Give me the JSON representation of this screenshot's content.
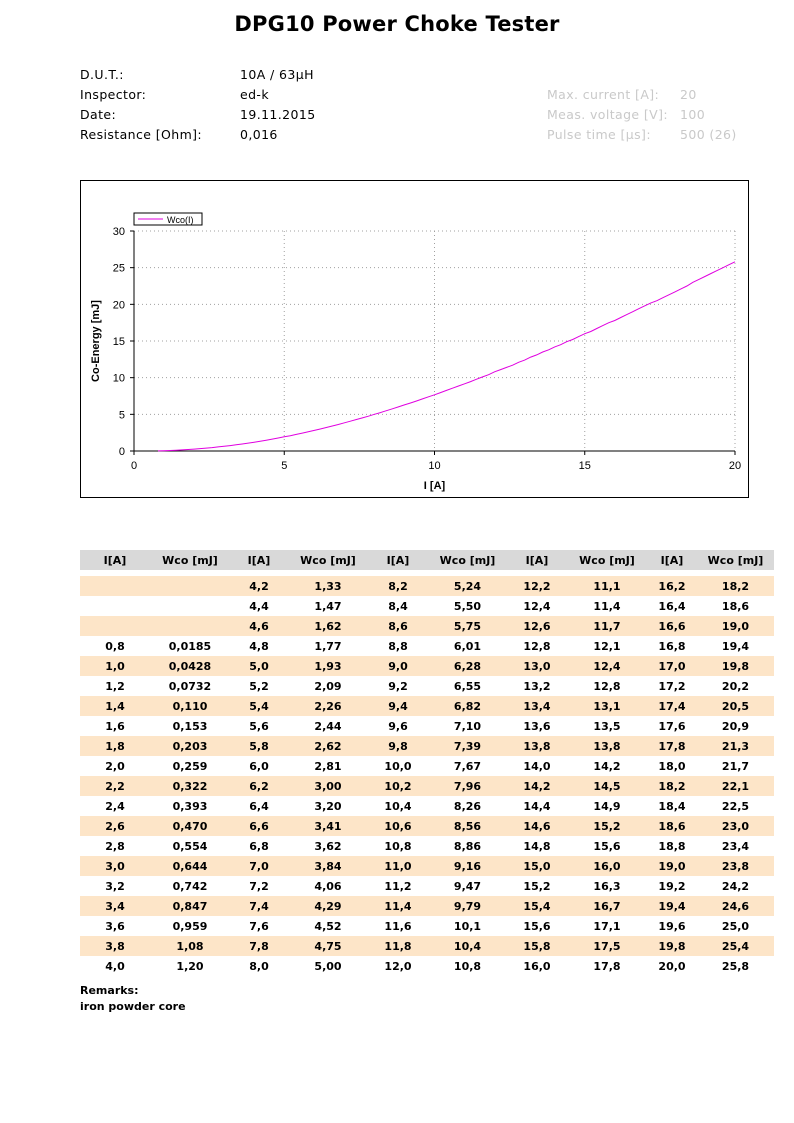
{
  "title": "DPG10 Power Choke Tester",
  "info_left": [
    {
      "label": "D.U.T.:",
      "value": "10A / 63µH"
    },
    {
      "label": "Inspector:",
      "value": "ed-k"
    },
    {
      "label": "Date:",
      "value": "19.11.2015"
    },
    {
      "label": "Resistance [Ohm]:",
      "value": "0,016"
    }
  ],
  "info_right": [
    {
      "label": "Max. current [A]:",
      "value": "20"
    },
    {
      "label": "Meas. voltage [V]:",
      "value": "100"
    },
    {
      "label": "Pulse time [µs]:",
      "value": "500 (26)"
    }
  ],
  "colors": {
    "curve": "#e000e0",
    "grid": "#a0a0a0",
    "row_alt": "#fde5c8",
    "header_bg": "#d9d9d9"
  },
  "chart_data": {
    "type": "line",
    "xlabel": "I [A]",
    "ylabel": "Co-Energy [mJ]",
    "xlim": [
      0,
      20
    ],
    "ylim": [
      0,
      30
    ],
    "xticks": [
      "0",
      "5",
      "10",
      "15",
      "20"
    ],
    "yticks": [
      "0",
      "5",
      "10",
      "15",
      "20",
      "25",
      "30"
    ],
    "grid": true,
    "legend": "top-left",
    "series": [
      {
        "name": "Wco(I)",
        "x": [
          0.8,
          1.0,
          1.2,
          1.4,
          1.6,
          1.8,
          2.0,
          2.2,
          2.4,
          2.6,
          2.8,
          3.0,
          3.2,
          3.4,
          3.6,
          3.8,
          4.0,
          4.2,
          4.4,
          4.6,
          4.8,
          5.0,
          5.2,
          5.4,
          5.6,
          5.8,
          6.0,
          6.2,
          6.4,
          6.6,
          6.8,
          7.0,
          7.2,
          7.4,
          7.6,
          7.8,
          8.0,
          8.2,
          8.4,
          8.6,
          8.8,
          9.0,
          9.2,
          9.4,
          9.6,
          9.8,
          10.0,
          10.2,
          10.4,
          10.6,
          10.8,
          11.0,
          11.2,
          11.4,
          11.6,
          11.8,
          12.0,
          12.2,
          12.4,
          12.6,
          12.8,
          13.0,
          13.2,
          13.4,
          13.6,
          13.8,
          14.0,
          14.2,
          14.4,
          14.6,
          14.8,
          15.0,
          15.2,
          15.4,
          15.6,
          15.8,
          16.0,
          16.2,
          16.4,
          16.6,
          16.8,
          17.0,
          17.2,
          17.4,
          17.6,
          17.8,
          18.0,
          18.2,
          18.4,
          18.6,
          18.8,
          19.0,
          19.2,
          19.4,
          19.6,
          19.8,
          20.0
        ],
        "values": [
          0.0185,
          0.0428,
          0.0732,
          0.11,
          0.153,
          0.203,
          0.259,
          0.322,
          0.393,
          0.47,
          0.554,
          0.644,
          0.742,
          0.847,
          0.959,
          1.08,
          1.2,
          1.33,
          1.47,
          1.62,
          1.77,
          1.93,
          2.09,
          2.26,
          2.44,
          2.62,
          2.81,
          3.0,
          3.2,
          3.41,
          3.62,
          3.84,
          4.06,
          4.29,
          4.52,
          4.75,
          5.0,
          5.24,
          5.5,
          5.75,
          6.01,
          6.28,
          6.55,
          6.82,
          7.1,
          7.39,
          7.67,
          7.96,
          8.26,
          8.56,
          8.86,
          9.16,
          9.47,
          9.79,
          10.1,
          10.4,
          10.8,
          11.1,
          11.4,
          11.7,
          12.1,
          12.4,
          12.8,
          13.1,
          13.5,
          13.8,
          14.2,
          14.5,
          14.9,
          15.2,
          15.6,
          16.0,
          16.3,
          16.7,
          17.1,
          17.5,
          17.8,
          18.2,
          18.6,
          19.0,
          19.4,
          19.8,
          20.2,
          20.5,
          20.9,
          21.3,
          21.7,
          22.1,
          22.5,
          23.0,
          23.4,
          23.8,
          24.2,
          24.6,
          25.0,
          25.4,
          25.8
        ]
      }
    ]
  },
  "table": {
    "headers": [
      "I[A]",
      "Wco [mJ]",
      "I[A]",
      "Wco [mJ]",
      "I[A]",
      "Wco [mJ]",
      "I[A]",
      "Wco [mJ]",
      "I[A]",
      "Wco [mJ]"
    ],
    "rows": [
      [
        "",
        "",
        "4,2",
        "1,33",
        "8,2",
        "5,24",
        "12,2",
        "11,1",
        "16,2",
        "18,2"
      ],
      [
        "",
        "",
        "4,4",
        "1,47",
        "8,4",
        "5,50",
        "12,4",
        "11,4",
        "16,4",
        "18,6"
      ],
      [
        "",
        "",
        "4,6",
        "1,62",
        "8,6",
        "5,75",
        "12,6",
        "11,7",
        "16,6",
        "19,0"
      ],
      [
        "0,8",
        "0,0185",
        "4,8",
        "1,77",
        "8,8",
        "6,01",
        "12,8",
        "12,1",
        "16,8",
        "19,4"
      ],
      [
        "1,0",
        "0,0428",
        "5,0",
        "1,93",
        "9,0",
        "6,28",
        "13,0",
        "12,4",
        "17,0",
        "19,8"
      ],
      [
        "1,2",
        "0,0732",
        "5,2",
        "2,09",
        "9,2",
        "6,55",
        "13,2",
        "12,8",
        "17,2",
        "20,2"
      ],
      [
        "1,4",
        "0,110",
        "5,4",
        "2,26",
        "9,4",
        "6,82",
        "13,4",
        "13,1",
        "17,4",
        "20,5"
      ],
      [
        "1,6",
        "0,153",
        "5,6",
        "2,44",
        "9,6",
        "7,10",
        "13,6",
        "13,5",
        "17,6",
        "20,9"
      ],
      [
        "1,8",
        "0,203",
        "5,8",
        "2,62",
        "9,8",
        "7,39",
        "13,8",
        "13,8",
        "17,8",
        "21,3"
      ],
      [
        "2,0",
        "0,259",
        "6,0",
        "2,81",
        "10,0",
        "7,67",
        "14,0",
        "14,2",
        "18,0",
        "21,7"
      ],
      [
        "2,2",
        "0,322",
        "6,2",
        "3,00",
        "10,2",
        "7,96",
        "14,2",
        "14,5",
        "18,2",
        "22,1"
      ],
      [
        "2,4",
        "0,393",
        "6,4",
        "3,20",
        "10,4",
        "8,26",
        "14,4",
        "14,9",
        "18,4",
        "22,5"
      ],
      [
        "2,6",
        "0,470",
        "6,6",
        "3,41",
        "10,6",
        "8,56",
        "14,6",
        "15,2",
        "18,6",
        "23,0"
      ],
      [
        "2,8",
        "0,554",
        "6,8",
        "3,62",
        "10,8",
        "8,86",
        "14,8",
        "15,6",
        "18,8",
        "23,4"
      ],
      [
        "3,0",
        "0,644",
        "7,0",
        "3,84",
        "11,0",
        "9,16",
        "15,0",
        "16,0",
        "19,0",
        "23,8"
      ],
      [
        "3,2",
        "0,742",
        "7,2",
        "4,06",
        "11,2",
        "9,47",
        "15,2",
        "16,3",
        "19,2",
        "24,2"
      ],
      [
        "3,4",
        "0,847",
        "7,4",
        "4,29",
        "11,4",
        "9,79",
        "15,4",
        "16,7",
        "19,4",
        "24,6"
      ],
      [
        "3,6",
        "0,959",
        "7,6",
        "4,52",
        "11,6",
        "10,1",
        "15,6",
        "17,1",
        "19,6",
        "25,0"
      ],
      [
        "3,8",
        "1,08",
        "7,8",
        "4,75",
        "11,8",
        "10,4",
        "15,8",
        "17,5",
        "19,8",
        "25,4"
      ],
      [
        "4,0",
        "1,20",
        "8,0",
        "5,00",
        "12,0",
        "10,8",
        "16,0",
        "17,8",
        "20,0",
        "25,8"
      ]
    ]
  },
  "remarks": {
    "label": "Remarks:",
    "text": "iron powder core"
  }
}
